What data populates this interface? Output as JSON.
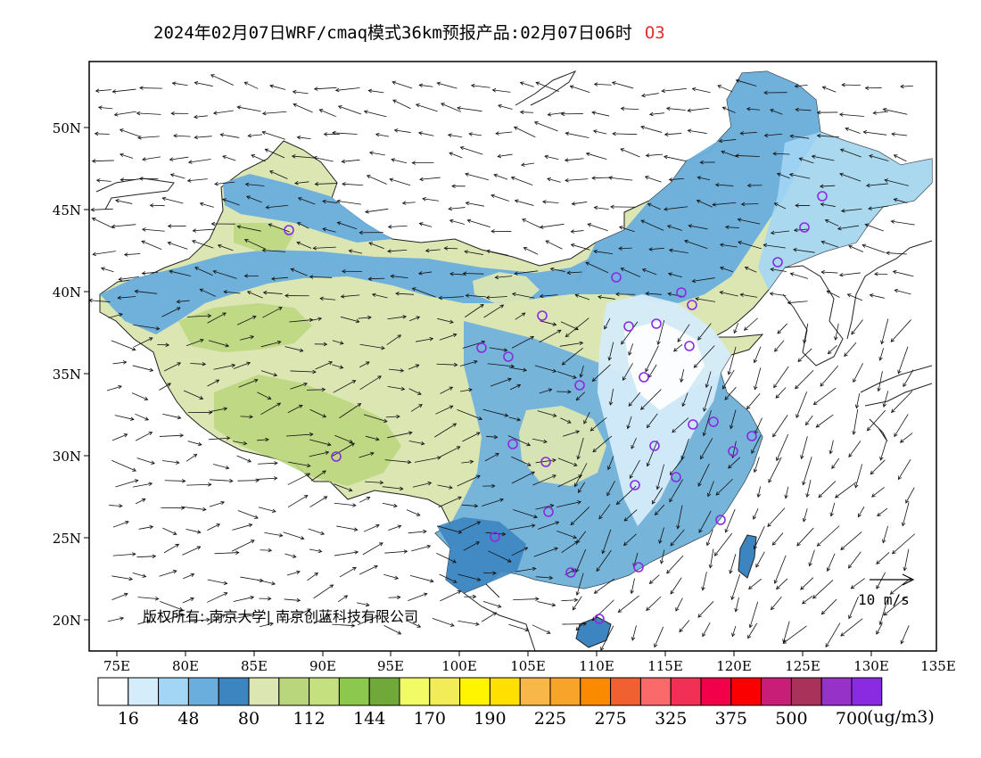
{
  "title": {
    "text": "2024年02月07日WRF/cmaq模式36km预报产品:02月07日06时",
    "species": "O3"
  },
  "map": {
    "lat_labels": [
      "50N",
      "45N",
      "40N",
      "35N",
      "30N",
      "25N",
      "20N"
    ],
    "lon_labels": [
      "75E",
      "80E",
      "85E",
      "90E",
      "95E",
      "100E",
      "105E",
      "110E",
      "115E",
      "120E",
      "125E",
      "130E",
      "135E"
    ],
    "copyright": "版权所有: 南京大学| 南京创蓝科技有限公司",
    "wind_scale": "10 m/s",
    "site_color": "#8a2be2"
  },
  "colorbar": {
    "colors": [
      "#ffffff",
      "#d5ecfb",
      "#a3d6f5",
      "#6aaedd",
      "#3d85c0",
      "#dbe6b3",
      "#bad67d",
      "#c4e07f",
      "#8cc84e",
      "#70a83a",
      "#f0fb66",
      "#f2ec58",
      "#fff500",
      "#ffe000",
      "#f9b74a",
      "#f8a42a",
      "#fa8a00",
      "#f06030",
      "#fa6a6a",
      "#f23055",
      "#f2004a",
      "#fa0000",
      "#c81e78",
      "#a8325a",
      "#9632c8",
      "#8a2be2"
    ],
    "labels": [
      "16",
      "48",
      "80",
      "112",
      "144",
      "170",
      "190",
      "225",
      "275",
      "325",
      "375",
      "500",
      "700"
    ],
    "unit": "(ug/m3)"
  }
}
